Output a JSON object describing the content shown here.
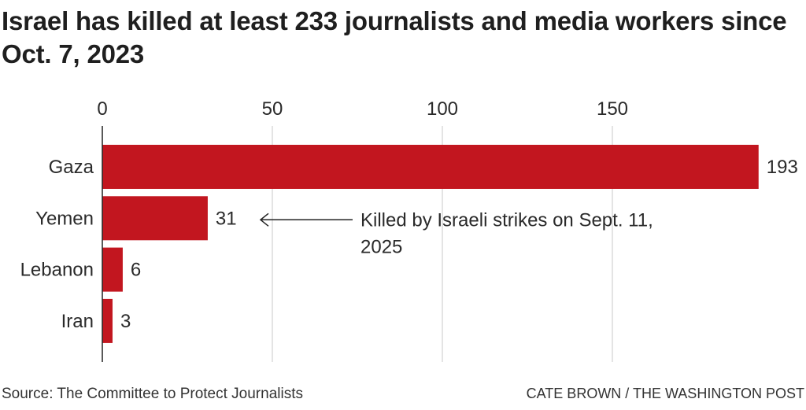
{
  "chart_data": {
    "type": "bar",
    "orientation": "horizontal",
    "title": "Israel has killed at least 233 journalists and media workers since Oct. 7, 2023",
    "categories": [
      "Gaza",
      "Yemen",
      "Lebanon",
      "Iran"
    ],
    "values": [
      193,
      31,
      6,
      3
    ],
    "xlim": [
      0,
      193
    ],
    "xticks": [
      0,
      50,
      100,
      150
    ],
    "xtick_labels": [
      "0",
      "50",
      "100",
      "150"
    ],
    "grid": true,
    "xlabel": "",
    "ylabel": "",
    "bar_color": "#c2161f",
    "annotations": [
      {
        "category": "Yemen",
        "text_lines": [
          "Killed by Israeli strikes on Sept. 11,",
          "2025"
        ],
        "arrow": "points-left-to-bar"
      }
    ]
  },
  "footer": {
    "source": "Source: The Committee to Protect Journalists",
    "credit": "CATE BROWN / THE WASHINGTON POST"
  }
}
